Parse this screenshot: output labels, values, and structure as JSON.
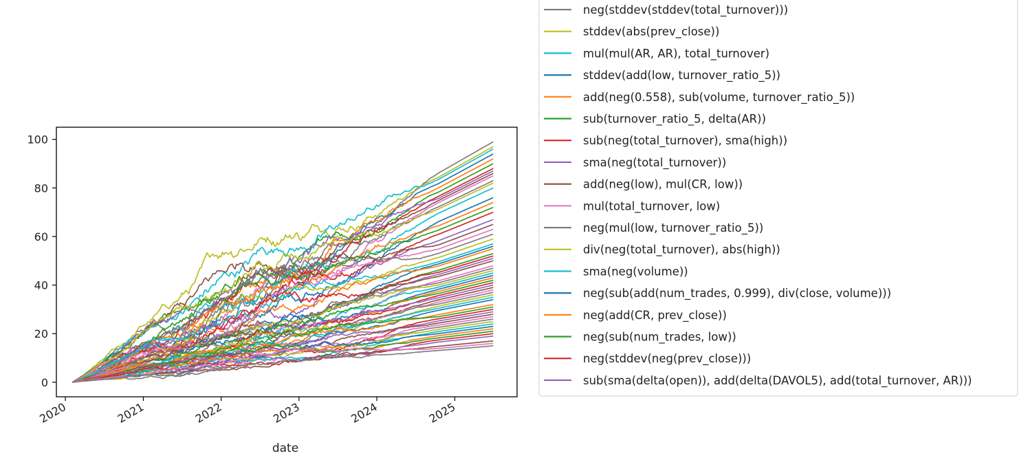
{
  "chart_data": {
    "type": "line",
    "title": "",
    "xlabel": "date",
    "ylabel": "",
    "x_tick_labels": [
      "2020",
      "2021",
      "2022",
      "2023",
      "2024",
      "2025"
    ],
    "y_ticks": [
      0,
      20,
      40,
      60,
      80,
      100
    ],
    "xlim": [
      "2019-11-20",
      "2025-10-20"
    ],
    "ylim": [
      -6,
      105
    ],
    "grid": false,
    "legend_position": "top-right, outside plot",
    "x_start": "2020-02-03",
    "x_end": "2025-06-30",
    "palette": [
      "#7f7f7f",
      "#bcbd22",
      "#17becf",
      "#1f77b4",
      "#ff7f0e",
      "#2ca02c",
      "#d62728",
      "#9467bd",
      "#8c564b",
      "#e377c2"
    ],
    "legend_visible": [
      {
        "name": "neg(stddev(stddev(total_turnover)))",
        "color": "#7f7f7f"
      },
      {
        "name": "stddev(abs(prev_close))",
        "color": "#bcbd22"
      },
      {
        "name": "mul(mul(AR, AR), total_turnover)",
        "color": "#17becf"
      },
      {
        "name": "stddev(add(low, turnover_ratio_5))",
        "color": "#1f77b4"
      },
      {
        "name": "add(neg(0.558), sub(volume, turnover_ratio_5))",
        "color": "#ff7f0e"
      },
      {
        "name": "sub(turnover_ratio_5, delta(AR))",
        "color": "#2ca02c"
      },
      {
        "name": "sub(neg(total_turnover), sma(high))",
        "color": "#d62728"
      },
      {
        "name": "sma(neg(total_turnover))",
        "color": "#9467bd"
      },
      {
        "name": "add(neg(low), mul(CR, low))",
        "color": "#8c564b"
      },
      {
        "name": "mul(total_turnover, low)",
        "color": "#e377c2"
      },
      {
        "name": "neg(mul(low, turnover_ratio_5))",
        "color": "#7f7f7f"
      },
      {
        "name": "div(neg(total_turnover), abs(high))",
        "color": "#bcbd22"
      },
      {
        "name": "sma(neg(volume))",
        "color": "#17becf"
      },
      {
        "name": "neg(sub(add(num_trades, 0.999), div(close, volume)))",
        "color": "#1f77b4"
      },
      {
        "name": "neg(add(CR, prev_close))",
        "color": "#ff7f0e"
      },
      {
        "name": "neg(sub(num_trades, low))",
        "color": "#2ca02c"
      },
      {
        "name": "neg(stddev(neg(prev_close)))",
        "color": "#d62728"
      },
      {
        "name": "sub(sma(delta(open)), add(delta(DAVOL5), add(total_turnover, AR)))",
        "color": "#9467bd"
      }
    ],
    "final_values": [
      99,
      97,
      96,
      94,
      92,
      90,
      88,
      87,
      86,
      85,
      83,
      82,
      80,
      76,
      74,
      72,
      70,
      67,
      65,
      63,
      61,
      59,
      57,
      56,
      55,
      53,
      52,
      51,
      50,
      48,
      47,
      46,
      45,
      44,
      43,
      42,
      41,
      40,
      39,
      38,
      37,
      36,
      35,
      34,
      32,
      31,
      30,
      29,
      28,
      27,
      26,
      25,
      24,
      23,
      22,
      21,
      20,
      19,
      17,
      16,
      15
    ]
  }
}
